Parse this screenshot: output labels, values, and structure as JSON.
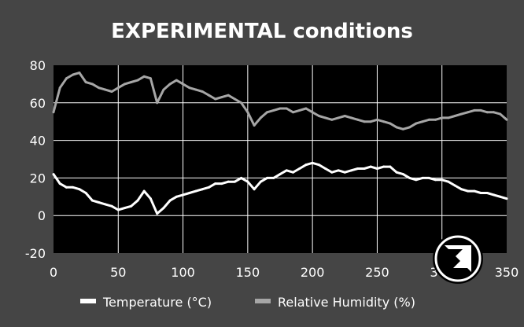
{
  "chart_data": {
    "type": "line",
    "title_bold": "EXPERIMENTAL",
    "title_rest": " conditions",
    "xlabel": "",
    "ylabel": "",
    "xlim": [
      0,
      350
    ],
    "ylim": [
      -20,
      80
    ],
    "x_ticks": [
      0,
      50,
      100,
      150,
      200,
      250,
      300,
      350
    ],
    "x_tick_labels": [
      "0",
      "50",
      "100",
      "150",
      "200",
      "250",
      "300",
      "350"
    ],
    "y_ticks": [
      -20,
      0,
      20,
      40,
      60,
      80
    ],
    "y_tick_labels": [
      "-20",
      "0",
      "20",
      "40",
      "60",
      "80"
    ],
    "grid": true,
    "legend_position": "bottom",
    "series": [
      {
        "name": "Temperature (°C)",
        "color": "#ffffff",
        "x": [
          0,
          5,
          10,
          15,
          20,
          25,
          30,
          35,
          40,
          45,
          50,
          55,
          60,
          65,
          70,
          75,
          80,
          85,
          90,
          95,
          100,
          105,
          110,
          115,
          120,
          125,
          130,
          135,
          140,
          145,
          150,
          155,
          160,
          165,
          170,
          175,
          180,
          185,
          190,
          195,
          200,
          205,
          210,
          215,
          220,
          225,
          230,
          235,
          240,
          245,
          250,
          255,
          260,
          265,
          270,
          275,
          280,
          285,
          290,
          295,
          300,
          305,
          310,
          315,
          320,
          325,
          330,
          335,
          340,
          345,
          350
        ],
        "y": [
          22,
          17,
          15,
          15,
          14,
          12,
          8,
          7,
          6,
          5,
          3,
          4,
          5,
          8,
          13,
          9,
          1,
          4,
          8,
          10,
          11,
          12,
          13,
          14,
          15,
          17,
          17,
          18,
          18,
          20,
          18,
          14,
          18,
          20,
          20,
          22,
          24,
          23,
          25,
          27,
          28,
          27,
          25,
          23,
          24,
          23,
          24,
          25,
          25,
          26,
          25,
          26,
          26,
          23,
          22,
          20,
          19,
          20,
          20,
          19,
          19,
          18,
          16,
          14,
          13,
          13,
          12,
          12,
          11,
          10,
          9
        ]
      },
      {
        "name": "Relative Humidity (%)",
        "color": "#a6a6a6",
        "x": [
          0,
          5,
          10,
          15,
          20,
          25,
          30,
          35,
          40,
          45,
          50,
          55,
          60,
          65,
          70,
          75,
          80,
          85,
          90,
          95,
          100,
          105,
          110,
          115,
          120,
          125,
          130,
          135,
          140,
          145,
          150,
          155,
          160,
          165,
          170,
          175,
          180,
          185,
          190,
          195,
          200,
          205,
          210,
          215,
          220,
          225,
          230,
          235,
          240,
          245,
          250,
          255,
          260,
          265,
          270,
          275,
          280,
          285,
          290,
          295,
          300,
          305,
          310,
          315,
          320,
          325,
          330,
          335,
          340,
          345,
          350
        ],
        "y": [
          55,
          68,
          73,
          75,
          76,
          71,
          70,
          68,
          67,
          66,
          68,
          70,
          71,
          72,
          74,
          73,
          60,
          67,
          70,
          72,
          70,
          68,
          67,
          66,
          64,
          62,
          63,
          64,
          62,
          60,
          55,
          48,
          52,
          55,
          56,
          57,
          57,
          55,
          56,
          57,
          55,
          53,
          52,
          51,
          52,
          53,
          52,
          51,
          50,
          50,
          51,
          50,
          49,
          47,
          46,
          47,
          49,
          50,
          51,
          51,
          52,
          52,
          53,
          54,
          55,
          56,
          56,
          55,
          55,
          54,
          51
        ]
      }
    ]
  }
}
